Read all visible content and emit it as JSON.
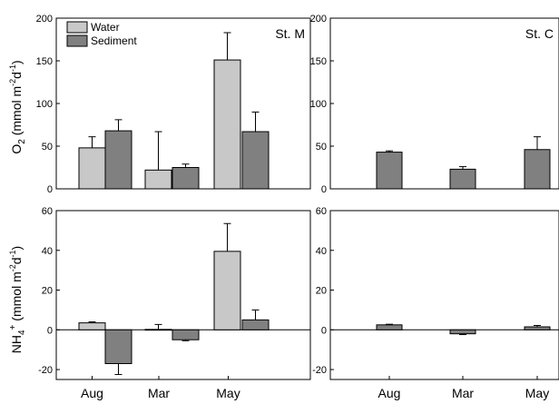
{
  "chart_data": [
    {
      "type": "bar",
      "panel": "top-left",
      "station": "St. M",
      "ylabel": "O2 (mmol m-2d-1)",
      "ylim": [
        0,
        200
      ],
      "yticks": [
        "0",
        "50",
        "100",
        "150",
        "200"
      ],
      "categories": [
        "Aug",
        "Mar",
        "May"
      ],
      "legend": [
        "Water",
        "Sediment"
      ],
      "series": [
        {
          "name": "Water",
          "color": "#c8c8c8",
          "values": [
            48,
            22,
            151
          ],
          "errors": [
            13,
            45,
            32
          ]
        },
        {
          "name": "Sediment",
          "color": "#808080",
          "values": [
            68,
            25,
            67
          ],
          "errors": [
            13,
            4,
            23
          ]
        }
      ]
    },
    {
      "type": "bar",
      "panel": "top-right",
      "station": "St. C",
      "ylim": [
        0,
        200
      ],
      "yticks": [
        "0",
        "50",
        "100",
        "150",
        "200"
      ],
      "categories": [
        "Aug",
        "Mar",
        "May"
      ],
      "series": [
        {
          "name": "Sediment",
          "color": "#808080",
          "values": [
            43,
            23,
            46
          ],
          "errors": [
            1.5,
            3,
            15
          ]
        }
      ]
    },
    {
      "type": "bar",
      "panel": "bottom-left",
      "ylabel": "NH4+ (mmol m-2d-1)",
      "ylim": [
        -25,
        60
      ],
      "yticks": [
        "-20",
        "0",
        "20",
        "40",
        "60"
      ],
      "categories": [
        "Aug",
        "Mar",
        "May"
      ],
      "series": [
        {
          "name": "Water",
          "color": "#c8c8c8",
          "values": [
            3.5,
            0.2,
            39.5
          ],
          "errors": [
            0.5,
            2.5,
            14
          ]
        },
        {
          "name": "Sediment",
          "color": "#808080",
          "values": [
            -17,
            -5,
            5
          ],
          "errors": [
            5.5,
            0.5,
            5
          ]
        }
      ]
    },
    {
      "type": "bar",
      "panel": "bottom-right",
      "ylim": [
        -25,
        60
      ],
      "yticks": [
        "-20",
        "0",
        "20",
        "40",
        "60"
      ],
      "categories": [
        "Aug",
        "Mar",
        "May"
      ],
      "series": [
        {
          "name": "Sediment",
          "color": "#808080",
          "values": [
            2.5,
            -2,
            1.5
          ],
          "errors": [
            0.3,
            0.4,
            0.7
          ]
        }
      ]
    }
  ],
  "axis": {
    "ylabel_top": {
      "base": "O",
      "sub": "2",
      "rest": " (mmol m",
      "sup": "-2",
      "mid": "d",
      "sup2": "-1",
      "end": ")"
    },
    "ylabel_bottom": {
      "base": "NH",
      "sub": "4",
      "sup_plus": "+",
      "rest": " (mmol m",
      "sup": "-2",
      "mid": "d",
      "sup2": "-1",
      "end": ")"
    }
  }
}
